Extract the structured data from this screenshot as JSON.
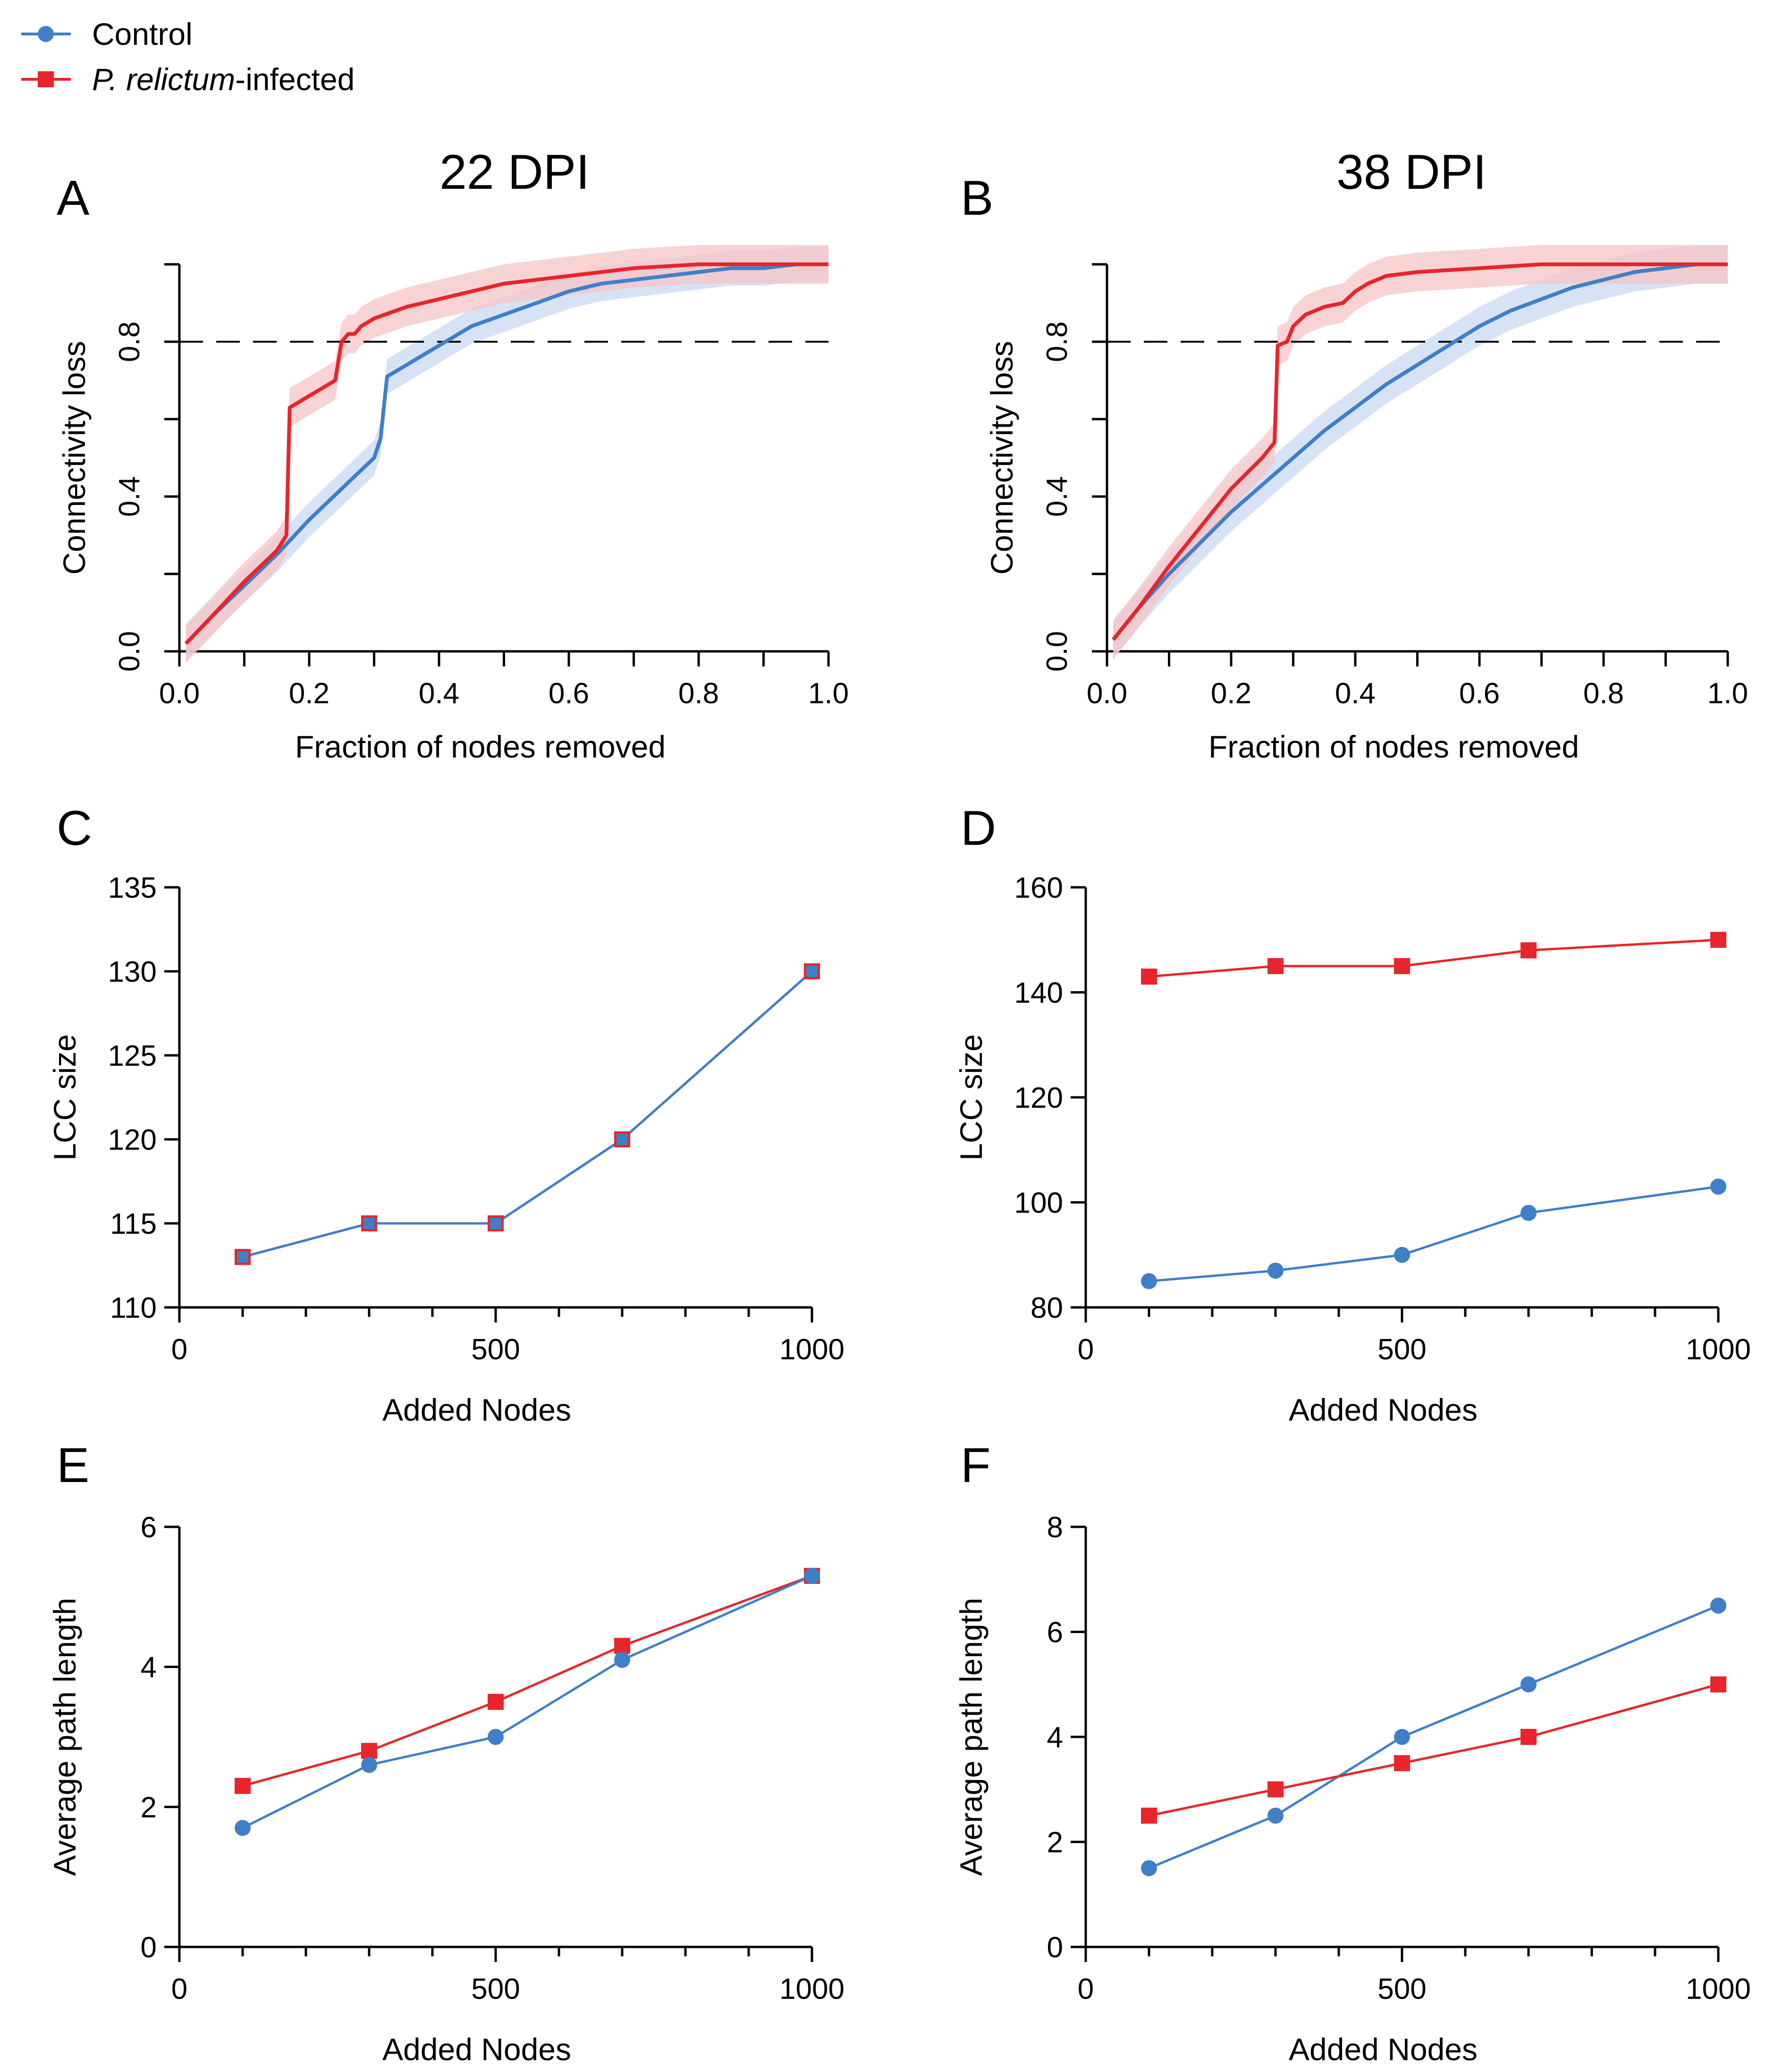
{
  "colors": {
    "control": "#3f7fc8",
    "infected": "#e8252b",
    "control_band": "#c9daf0",
    "infected_band": "#f6c4c5",
    "axis": "#000000"
  },
  "legend": {
    "items": [
      {
        "key": "control",
        "label": "Control",
        "marker": "circle"
      },
      {
        "key": "infected",
        "label_species": "P. relictum",
        "label_suffix": "-infected",
        "marker": "square"
      }
    ]
  },
  "chart_data": [
    {
      "id": "A",
      "letter": "A",
      "title": "22 DPI",
      "type": "line",
      "xlabel": "Fraction of nodes removed",
      "ylabel": "Connectivity loss",
      "xlim": [
        0,
        1
      ],
      "ylim": [
        0,
        1
      ],
      "xticks": [
        "0.0",
        "0.2",
        "0.4",
        "0.6",
        "0.8",
        "1.0"
      ],
      "yticks": [
        "0.0",
        "0.4",
        "0.8"
      ],
      "threshold": 0.8,
      "series": [
        {
          "name": "Control",
          "key": "control",
          "band": 0.045,
          "x": [
            0.01,
            0.05,
            0.1,
            0.15,
            0.2,
            0.25,
            0.3,
            0.31,
            0.32,
            0.35,
            0.4,
            0.45,
            0.5,
            0.55,
            0.6,
            0.65,
            0.7,
            0.75,
            0.8,
            0.85,
            0.9,
            0.95,
            1.0
          ],
          "y": [
            0.02,
            0.09,
            0.17,
            0.25,
            0.34,
            0.42,
            0.5,
            0.55,
            0.71,
            0.74,
            0.79,
            0.84,
            0.87,
            0.9,
            0.93,
            0.95,
            0.96,
            0.97,
            0.98,
            0.99,
            0.99,
            1.0,
            1.0
          ]
        },
        {
          "name": "P. relictum-infected",
          "key": "infected",
          "band": 0.05,
          "x": [
            0.01,
            0.05,
            0.1,
            0.15,
            0.165,
            0.17,
            0.2,
            0.24,
            0.25,
            0.26,
            0.27,
            0.28,
            0.3,
            0.35,
            0.4,
            0.45,
            0.5,
            0.6,
            0.7,
            0.8,
            0.9,
            1.0
          ],
          "y": [
            0.02,
            0.09,
            0.18,
            0.26,
            0.3,
            0.63,
            0.66,
            0.7,
            0.8,
            0.82,
            0.82,
            0.84,
            0.86,
            0.89,
            0.91,
            0.93,
            0.95,
            0.97,
            0.99,
            1.0,
            1.0,
            1.0
          ]
        }
      ]
    },
    {
      "id": "B",
      "letter": "B",
      "title": "38 DPI",
      "type": "line",
      "xlabel": "Fraction of nodes removed",
      "ylabel": "Connectivity loss",
      "xlim": [
        0,
        1
      ],
      "ylim": [
        0,
        1
      ],
      "xticks": [
        "0.0",
        "0.2",
        "0.4",
        "0.6",
        "0.8",
        "1.0"
      ],
      "yticks": [
        "0.0",
        "0.4",
        "0.8"
      ],
      "threshold": 0.8,
      "series": [
        {
          "name": "Control",
          "key": "control",
          "band": 0.05,
          "x": [
            0.01,
            0.05,
            0.1,
            0.15,
            0.2,
            0.25,
            0.3,
            0.35,
            0.4,
            0.45,
            0.5,
            0.55,
            0.6,
            0.65,
            0.7,
            0.75,
            0.8,
            0.85,
            0.9,
            0.95,
            1.0
          ],
          "y": [
            0.03,
            0.11,
            0.2,
            0.28,
            0.36,
            0.43,
            0.5,
            0.57,
            0.63,
            0.69,
            0.74,
            0.79,
            0.84,
            0.88,
            0.91,
            0.94,
            0.96,
            0.98,
            0.99,
            1.0,
            1.0
          ]
        },
        {
          "name": "P. relictum-infected",
          "key": "infected",
          "band": 0.05,
          "x": [
            0.01,
            0.05,
            0.1,
            0.15,
            0.2,
            0.25,
            0.27,
            0.275,
            0.29,
            0.3,
            0.32,
            0.35,
            0.38,
            0.4,
            0.42,
            0.45,
            0.5,
            0.6,
            0.7,
            0.8,
            0.9,
            1.0
          ],
          "y": [
            0.03,
            0.11,
            0.22,
            0.32,
            0.42,
            0.5,
            0.54,
            0.79,
            0.8,
            0.84,
            0.87,
            0.89,
            0.9,
            0.93,
            0.95,
            0.97,
            0.98,
            0.99,
            1.0,
            1.0,
            1.0,
            1.0
          ]
        }
      ]
    },
    {
      "id": "C",
      "letter": "C",
      "type": "line",
      "xlabel": "Added Nodes",
      "ylabel": "LCC size",
      "xlim": [
        0,
        1000
      ],
      "ylim": [
        110,
        135
      ],
      "xticks": [
        "0",
        "500",
        "1000"
      ],
      "xtick_values": [
        0,
        500,
        1000
      ],
      "xminor": 100,
      "yticks": [
        "110",
        "115",
        "120",
        "125",
        "130",
        "135"
      ],
      "ytick_values": [
        110,
        115,
        120,
        125,
        130,
        135
      ],
      "series": [
        {
          "name": "P. relictum-infected",
          "key": "infected",
          "marker": "square",
          "x": [
            100,
            300,
            500,
            700,
            1000
          ],
          "y": [
            113,
            115,
            115,
            120,
            130
          ]
        },
        {
          "name": "Control",
          "key": "control",
          "marker": "square-blue",
          "x": [
            100,
            300,
            500,
            700,
            1000
          ],
          "y": [
            113,
            115,
            115,
            120,
            130
          ]
        }
      ]
    },
    {
      "id": "D",
      "letter": "D",
      "type": "line",
      "xlabel": "Added Nodes",
      "ylabel": "LCC size",
      "xlim": [
        0,
        1000
      ],
      "ylim": [
        80,
        160
      ],
      "xticks": [
        "0",
        "500",
        "1000"
      ],
      "xtick_values": [
        0,
        500,
        1000
      ],
      "xminor": 100,
      "yticks": [
        "80",
        "100",
        "120",
        "140",
        "160"
      ],
      "ytick_values": [
        80,
        100,
        120,
        140,
        160
      ],
      "series": [
        {
          "name": "Control",
          "key": "control",
          "marker": "circle",
          "x": [
            100,
            300,
            500,
            700,
            1000
          ],
          "y": [
            85,
            87,
            90,
            98,
            103
          ]
        },
        {
          "name": "P. relictum-infected",
          "key": "infected",
          "marker": "square",
          "x": [
            100,
            300,
            500,
            700,
            1000
          ],
          "y": [
            143,
            145,
            145,
            148,
            150
          ]
        }
      ]
    },
    {
      "id": "E",
      "letter": "E",
      "type": "line",
      "xlabel": "Added Nodes",
      "ylabel": "Average path length",
      "xlim": [
        0,
        1000
      ],
      "ylim": [
        0,
        6
      ],
      "xticks": [
        "0",
        "500",
        "1000"
      ],
      "xtick_values": [
        0,
        500,
        1000
      ],
      "xminor": 100,
      "yticks": [
        "0",
        "2",
        "4",
        "6"
      ],
      "ytick_values": [
        0,
        2,
        4,
        6
      ],
      "series": [
        {
          "name": "P. relictum-infected",
          "key": "infected",
          "marker": "square",
          "x": [
            100,
            300,
            500,
            700,
            1000
          ],
          "y": [
            2.3,
            2.8,
            3.5,
            4.3,
            5.3
          ]
        },
        {
          "name": "Control",
          "key": "control",
          "marker": "circle",
          "x": [
            100,
            300,
            500,
            700,
            1000
          ],
          "y": [
            1.7,
            2.6,
            3.0,
            4.1,
            5.3
          ]
        }
      ]
    },
    {
      "id": "F",
      "letter": "F",
      "type": "line",
      "xlabel": "Added Nodes",
      "ylabel": "Average path length",
      "xlim": [
        0,
        1000
      ],
      "ylim": [
        0,
        8
      ],
      "xticks": [
        "0",
        "500",
        "1000"
      ],
      "xtick_values": [
        0,
        500,
        1000
      ],
      "xminor": 100,
      "yticks": [
        "0",
        "2",
        "4",
        "6",
        "8"
      ],
      "ytick_values": [
        0,
        2,
        4,
        6,
        8
      ],
      "series": [
        {
          "name": "Control",
          "key": "control",
          "marker": "circle",
          "x": [
            100,
            300,
            500,
            700,
            1000
          ],
          "y": [
            1.5,
            2.5,
            4.0,
            5.0,
            6.5
          ]
        },
        {
          "name": "P. relictum-infected",
          "key": "infected",
          "marker": "square",
          "x": [
            100,
            300,
            500,
            700,
            1000
          ],
          "y": [
            2.5,
            3.0,
            3.5,
            4.0,
            5.0
          ]
        }
      ]
    }
  ]
}
